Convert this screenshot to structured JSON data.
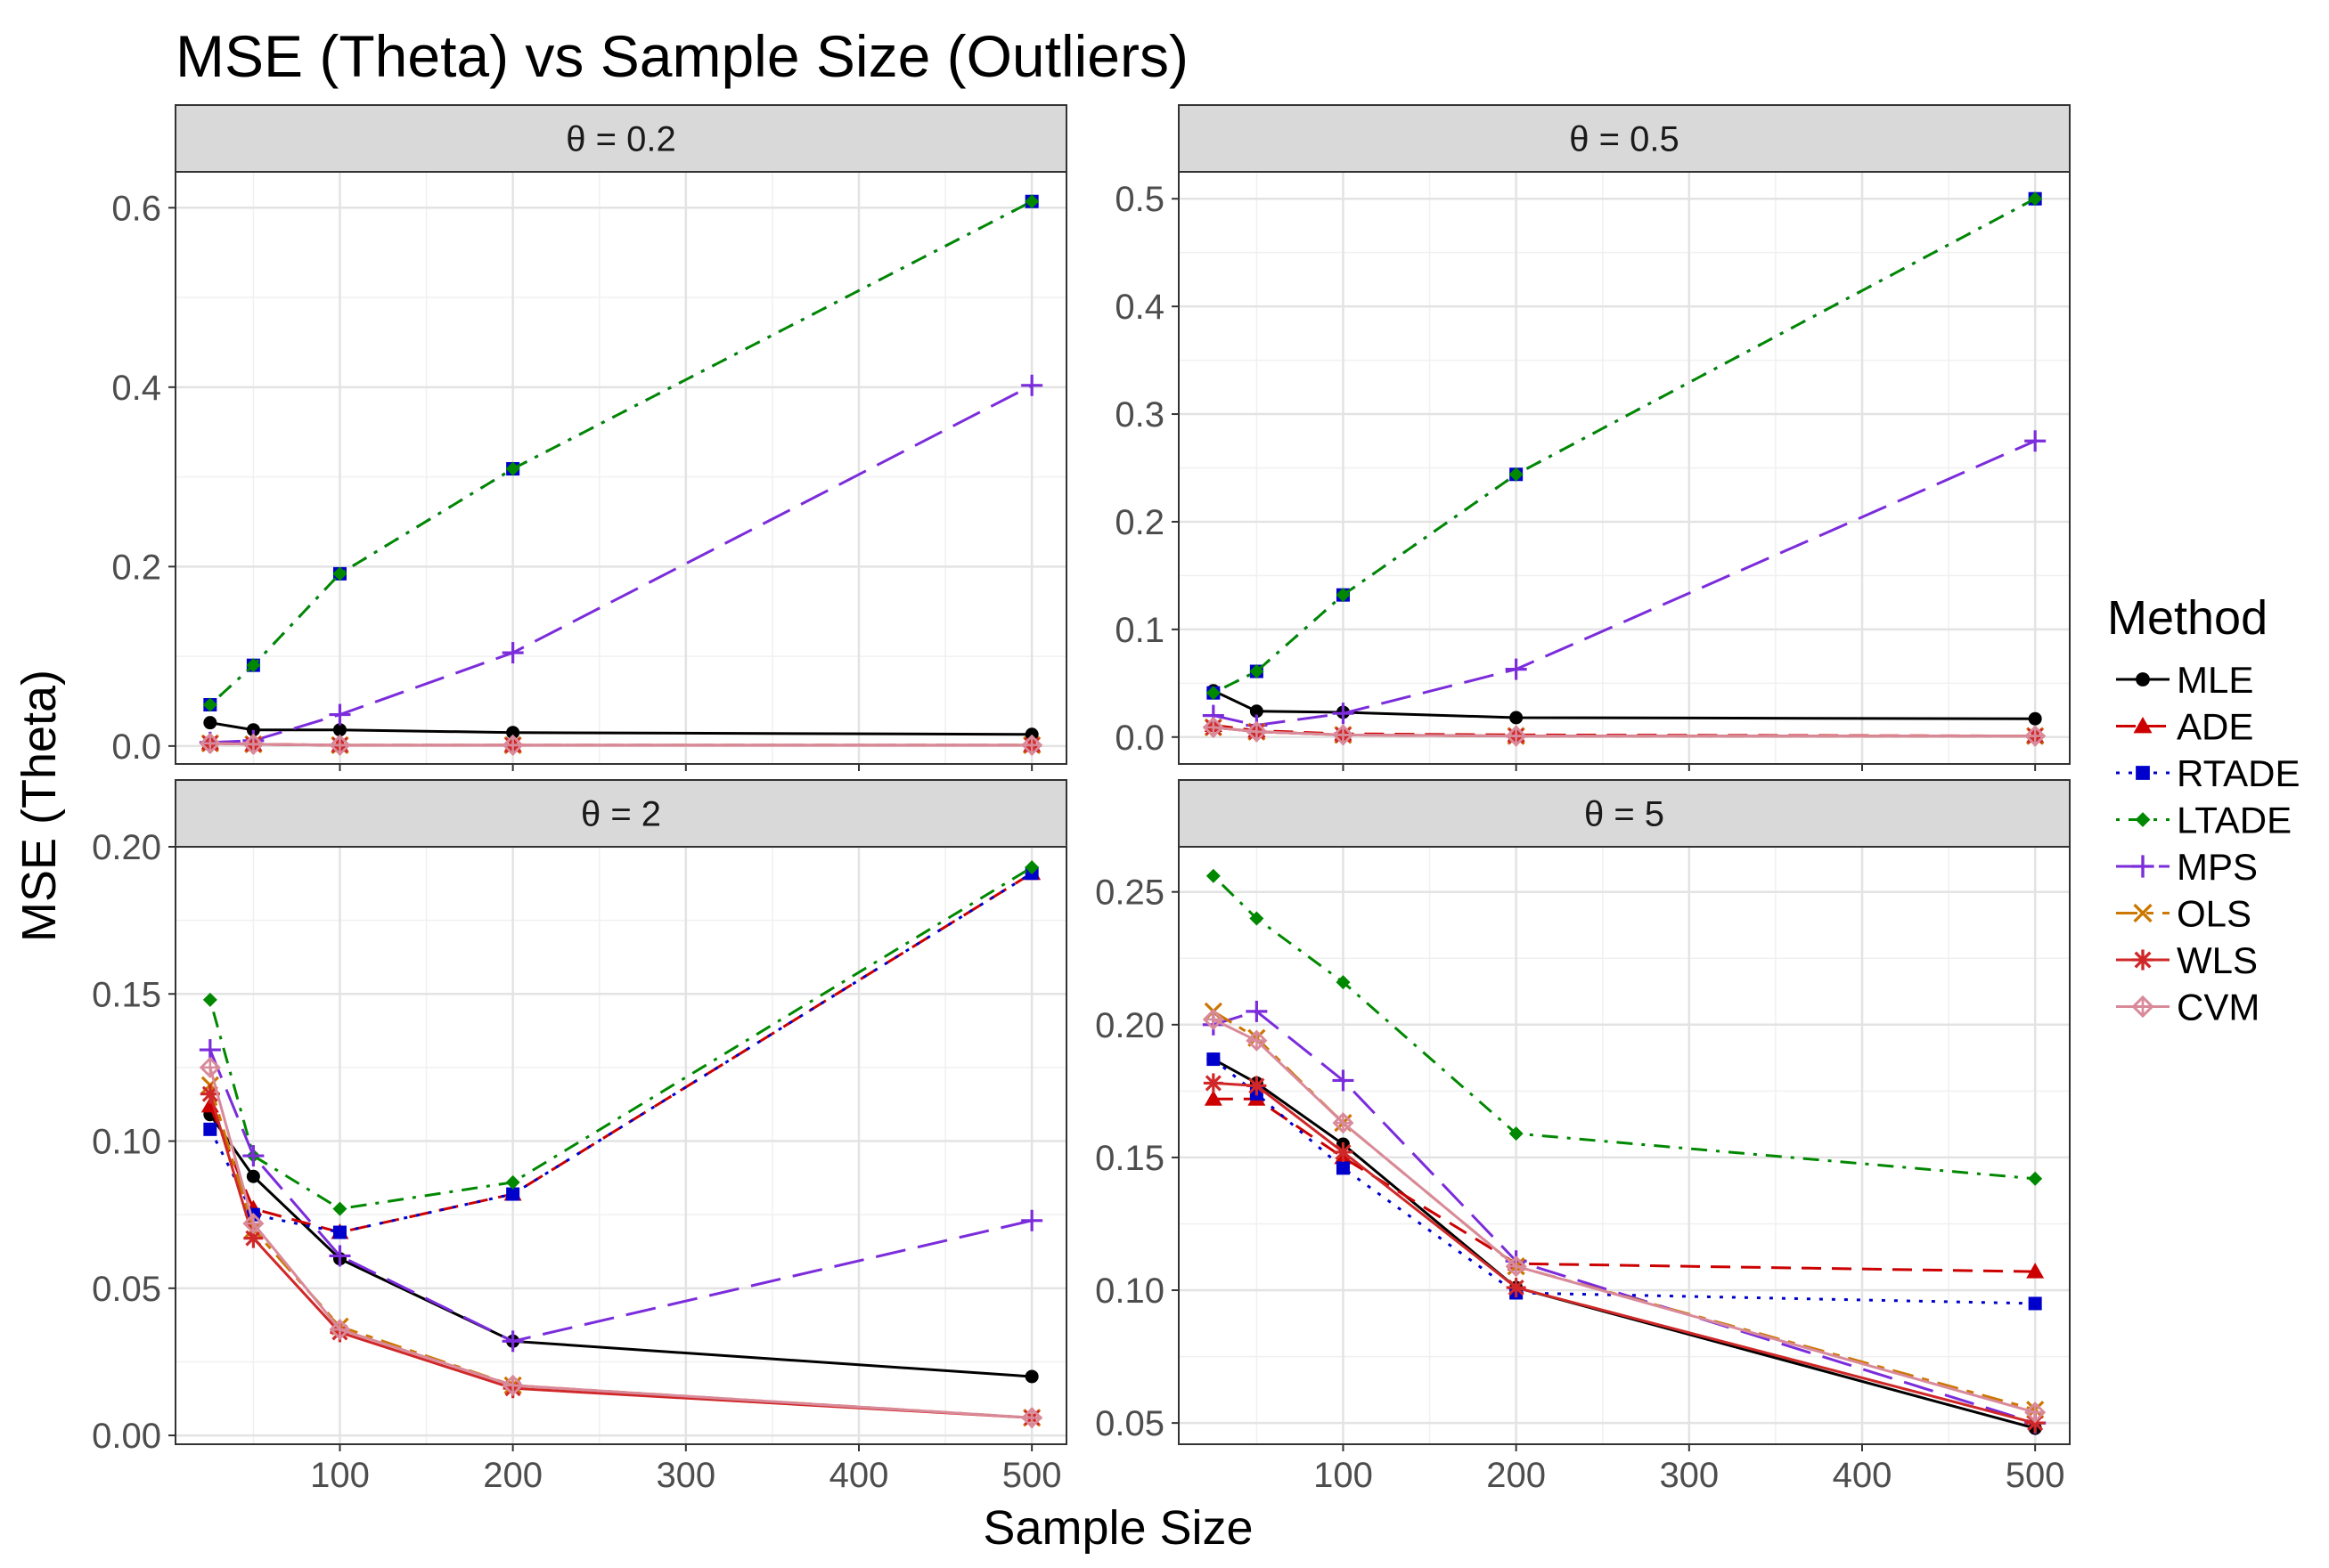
{
  "chart_data": {
    "type": "line",
    "title": "MSE (Theta) vs Sample Size (Outliers)",
    "xlabel": "Sample Size",
    "ylabel": "MSE (Theta)",
    "x": [
      25,
      50,
      100,
      200,
      500
    ],
    "xticks": [
      100,
      200,
      300,
      400,
      500
    ],
    "xlim": [
      5,
      520
    ],
    "legend": {
      "title": "Method",
      "placement": "right",
      "methods": [
        {
          "name": "MLE",
          "color": "#000000",
          "dash": "solid",
          "marker": "circle"
        },
        {
          "name": "ADE",
          "color": "#CC0000",
          "dash": "dashed",
          "marker": "triangle"
        },
        {
          "name": "RTADE",
          "color": "#0000CC",
          "dash": "dotted",
          "marker": "square"
        },
        {
          "name": "LTADE",
          "color": "#008800",
          "dash": "dotdash",
          "marker": "diamond"
        },
        {
          "name": "MPS",
          "color": "#7B2CDB",
          "dash": "longdash",
          "marker": "plus"
        },
        {
          "name": "OLS",
          "color": "#CC7700",
          "dash": "twodash",
          "marker": "x"
        },
        {
          "name": "WLS",
          "color": "#D02828",
          "dash": "solid",
          "marker": "star"
        },
        {
          "name": "CVM",
          "color": "#D98A9A",
          "dash": "solid",
          "marker": "diamondplus"
        }
      ]
    },
    "panels": [
      {
        "label": "θ = 0.2",
        "ylim": [
          -0.02,
          0.64
        ],
        "yticks": [
          0.0,
          0.2,
          0.4,
          0.6
        ],
        "ytick_labels": [
          "0.0",
          "0.2",
          "0.4",
          "0.6"
        ],
        "series": [
          {
            "name": "MLE",
            "values": [
              0.026,
              0.018,
              0.018,
              0.015,
              0.013
            ]
          },
          {
            "name": "ADE",
            "values": [
              0.004,
              0.002,
              0.001,
              0.001,
              0.001
            ]
          },
          {
            "name": "RTADE",
            "values": [
              0.046,
              0.09,
              0.192,
              0.309,
              0.607
            ]
          },
          {
            "name": "LTADE",
            "values": [
              0.046,
              0.09,
              0.192,
              0.309,
              0.607
            ]
          },
          {
            "name": "MPS",
            "values": [
              0.004,
              0.006,
              0.035,
              0.104,
              0.402
            ]
          },
          {
            "name": "OLS",
            "values": [
              0.003,
              0.002,
              0.001,
              0.001,
              0.001
            ]
          },
          {
            "name": "WLS",
            "values": [
              0.003,
              0.002,
              0.001,
              0.001,
              0.001
            ]
          },
          {
            "name": "CVM",
            "values": [
              0.003,
              0.002,
              0.001,
              0.001,
              0.001
            ]
          }
        ]
      },
      {
        "label": "θ = 0.5",
        "ylim": [
          -0.025,
          0.525
        ],
        "yticks": [
          0.0,
          0.1,
          0.2,
          0.3,
          0.4,
          0.5
        ],
        "ytick_labels": [
          "0.0",
          "0.1",
          "0.2",
          "0.3",
          "0.4",
          "0.5"
        ],
        "series": [
          {
            "name": "MLE",
            "values": [
              0.043,
              0.024,
              0.023,
              0.018,
              0.017
            ]
          },
          {
            "name": "ADE",
            "values": [
              0.011,
              0.006,
              0.003,
              0.002,
              0.001
            ]
          },
          {
            "name": "RTADE",
            "values": [
              0.041,
              0.061,
              0.132,
              0.244,
              0.5
            ]
          },
          {
            "name": "LTADE",
            "values": [
              0.041,
              0.061,
              0.132,
              0.244,
              0.5
            ]
          },
          {
            "name": "MPS",
            "values": [
              0.02,
              0.011,
              0.022,
              0.063,
              0.275
            ]
          },
          {
            "name": "OLS",
            "values": [
              0.009,
              0.005,
              0.002,
              0.001,
              0.001
            ]
          },
          {
            "name": "WLS",
            "values": [
              0.009,
              0.005,
              0.002,
              0.001,
              0.001
            ]
          },
          {
            "name": "CVM",
            "values": [
              0.009,
              0.005,
              0.002,
              0.001,
              0.001
            ]
          }
        ]
      },
      {
        "label": "θ = 2",
        "ylim": [
          -0.003,
          0.2
        ],
        "yticks": [
          0.0,
          0.05,
          0.1,
          0.15,
          0.2
        ],
        "ytick_labels": [
          "0.00",
          "0.05",
          "0.10",
          "0.15",
          "0.20"
        ],
        "series": [
          {
            "name": "MLE",
            "values": [
              0.109,
              0.088,
              0.06,
              0.032,
              0.02
            ]
          },
          {
            "name": "ADE",
            "values": [
              0.112,
              0.077,
              0.069,
              0.082,
              0.191
            ]
          },
          {
            "name": "RTADE",
            "values": [
              0.104,
              0.075,
              0.069,
              0.082,
              0.191
            ]
          },
          {
            "name": "LTADE",
            "values": [
              0.148,
              0.095,
              0.077,
              0.086,
              0.193
            ]
          },
          {
            "name": "MPS",
            "values": [
              0.131,
              0.095,
              0.061,
              0.032,
              0.073
            ]
          },
          {
            "name": "OLS",
            "values": [
              0.119,
              0.07,
              0.037,
              0.017,
              0.006
            ]
          },
          {
            "name": "WLS",
            "values": [
              0.116,
              0.067,
              0.035,
              0.016,
              0.006
            ]
          },
          {
            "name": "CVM",
            "values": [
              0.125,
              0.072,
              0.036,
              0.017,
              0.006
            ]
          }
        ]
      },
      {
        "label": "θ = 5",
        "ylim": [
          0.042,
          0.267
        ],
        "yticks": [
          0.05,
          0.1,
          0.15,
          0.2,
          0.25
        ],
        "ytick_labels": [
          "0.05",
          "0.10",
          "0.15",
          "0.20",
          "0.25"
        ],
        "series": [
          {
            "name": "MLE",
            "values": [
              0.187,
              0.178,
              0.155,
              0.101,
              0.048
            ]
          },
          {
            "name": "ADE",
            "values": [
              0.172,
              0.172,
              0.15,
              0.11,
              0.107
            ]
          },
          {
            "name": "RTADE",
            "values": [
              0.187,
              0.174,
              0.146,
              0.099,
              0.095
            ]
          },
          {
            "name": "LTADE",
            "values": [
              0.256,
              0.24,
              0.216,
              0.159,
              0.142
            ]
          },
          {
            "name": "MPS",
            "values": [
              0.2,
              0.205,
              0.179,
              0.111,
              0.05
            ]
          },
          {
            "name": "OLS",
            "values": [
              0.205,
              0.195,
              0.163,
              0.109,
              0.055
            ]
          },
          {
            "name": "WLS",
            "values": [
              0.178,
              0.177,
              0.152,
              0.101,
              0.05
            ]
          },
          {
            "name": "CVM",
            "values": [
              0.202,
              0.194,
              0.163,
              0.109,
              0.054
            ]
          }
        ]
      }
    ]
  }
}
